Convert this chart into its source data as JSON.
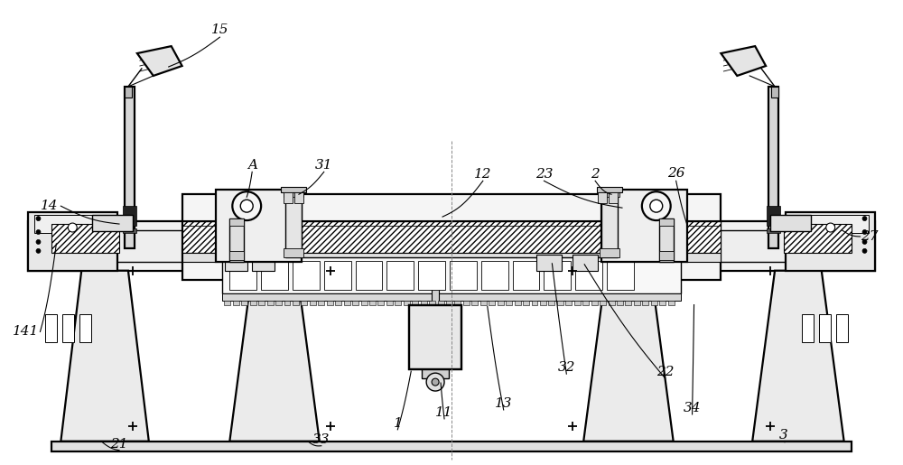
{
  "bg_color": "#ffffff",
  "line_color": "#000000",
  "fig_width": 10.0,
  "fig_height": 5.15,
  "label_fontsize": 11
}
